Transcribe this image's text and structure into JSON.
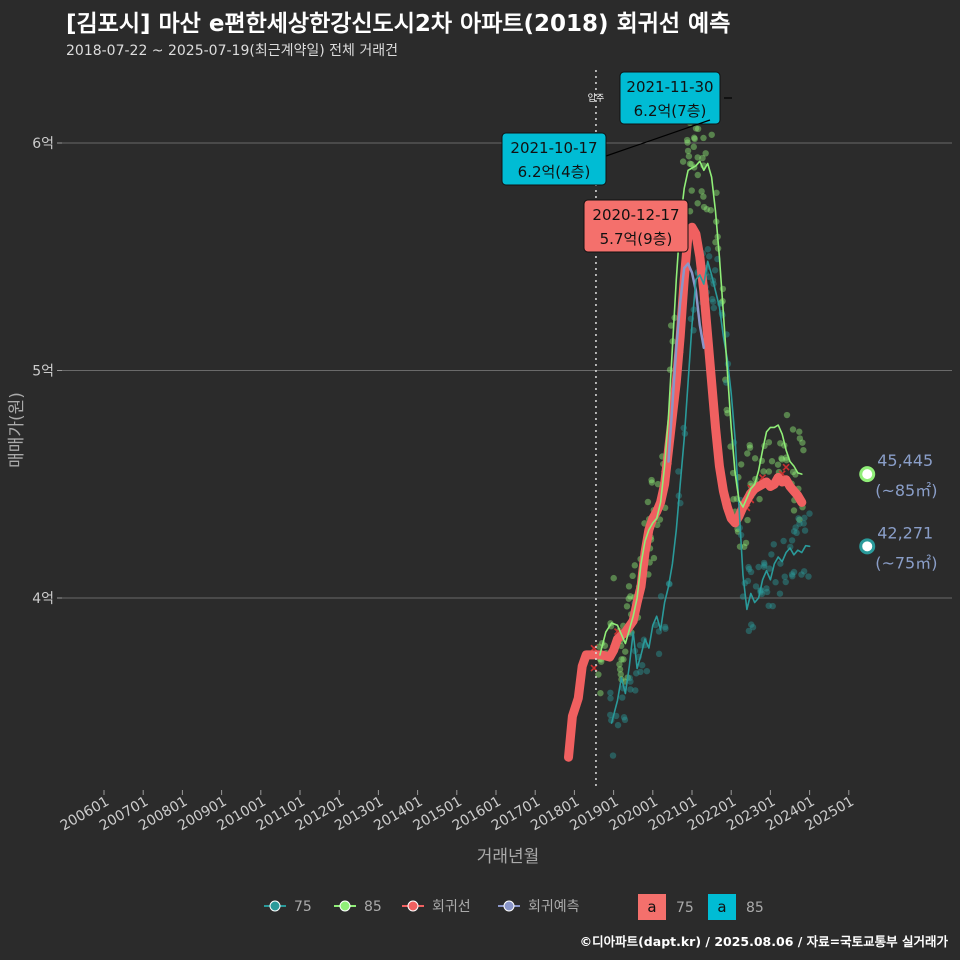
{
  "header": {
    "title": "[김포시] 마산 e편한세상한강신도시2차 아파트(2018) 회귀선 예측",
    "subtitle": "2018-07-22 ~ 2025-07-19(최근계약일) 전체 거래건"
  },
  "footer": {
    "credit": "©디아파트(dapt.kr) / 2025.08.06 / 자료=국토교통부 실거래가"
  },
  "chart_data": {
    "type": "line",
    "xlabel": "거래년월",
    "ylabel": "매매가(원)",
    "x_ticks": [
      "200601",
      "200701",
      "200801",
      "200901",
      "201001",
      "201101",
      "201201",
      "201301",
      "201401",
      "201501",
      "201601",
      "201701",
      "201801",
      "201901",
      "202001",
      "202101",
      "202201",
      "202301",
      "202401",
      "202501"
    ],
    "y_ticks": [
      {
        "value": 40000,
        "label": "4억"
      },
      {
        "value": 50000,
        "label": "5억"
      },
      {
        "value": 60000,
        "label": "6억"
      }
    ],
    "ylim": [
      31000,
      63000
    ],
    "xlim": [
      2005.5,
      2026.2
    ],
    "colors": {
      "s75": "#2a9a9a",
      "s85": "#90ee78",
      "reg": "#f06060",
      "pred": "#8a96c8",
      "teal_box": "#00bcd4",
      "red_box": "#f4706c"
    },
    "series": [
      {
        "name": "75",
        "points": [
          [
            2018.95,
            34500
          ],
          [
            2019.1,
            35500
          ],
          [
            2019.2,
            36500
          ],
          [
            2019.3,
            35800
          ],
          [
            2019.4,
            37000
          ],
          [
            2019.5,
            38500
          ],
          [
            2019.6,
            36900
          ],
          [
            2019.7,
            37500
          ],
          [
            2019.8,
            38200
          ],
          [
            2019.9,
            37800
          ],
          [
            2020.0,
            38800
          ],
          [
            2020.1,
            39200
          ],
          [
            2020.2,
            38600
          ],
          [
            2020.3,
            39800
          ],
          [
            2020.4,
            40500
          ],
          [
            2020.5,
            41500
          ],
          [
            2020.6,
            43000
          ],
          [
            2020.7,
            45000
          ],
          [
            2020.8,
            47000
          ],
          [
            2020.9,
            49500
          ],
          [
            2021.0,
            52000
          ],
          [
            2021.1,
            54000
          ],
          [
            2021.2,
            54200
          ],
          [
            2021.3,
            53800
          ],
          [
            2021.4,
            54800
          ],
          [
            2021.5,
            54200
          ],
          [
            2021.6,
            53500
          ],
          [
            2021.7,
            52800
          ],
          [
            2021.8,
            51500
          ],
          [
            2021.9,
            50500
          ],
          [
            2022.0,
            49000
          ],
          [
            2022.1,
            47000
          ],
          [
            2022.2,
            44000
          ],
          [
            2022.3,
            41000
          ],
          [
            2022.4,
            39500
          ],
          [
            2022.5,
            40200
          ],
          [
            2022.6,
            39800
          ],
          [
            2022.7,
            40000
          ],
          [
            2022.8,
            40800
          ],
          [
            2022.9,
            41200
          ],
          [
            2023.0,
            40800
          ],
          [
            2023.1,
            41500
          ],
          [
            2023.2,
            41800
          ],
          [
            2023.3,
            41600
          ],
          [
            2023.4,
            42000
          ],
          [
            2023.5,
            42200
          ],
          [
            2023.6,
            41900
          ],
          [
            2023.7,
            42100
          ],
          [
            2023.8,
            42000
          ],
          [
            2023.9,
            42300
          ],
          [
            2024.0,
            42271
          ]
        ]
      },
      {
        "name": "85",
        "points": [
          [
            2018.65,
            37500
          ],
          [
            2018.8,
            38500
          ],
          [
            2018.95,
            38900
          ],
          [
            2019.1,
            38800
          ],
          [
            2019.2,
            38400
          ],
          [
            2019.3,
            38000
          ],
          [
            2019.4,
            38600
          ],
          [
            2019.5,
            39200
          ],
          [
            2019.6,
            40000
          ],
          [
            2019.7,
            41500
          ],
          [
            2019.8,
            42500
          ],
          [
            2019.9,
            43000
          ],
          [
            2020.0,
            43300
          ],
          [
            2020.1,
            43500
          ],
          [
            2020.2,
            44200
          ],
          [
            2020.3,
            45800
          ],
          [
            2020.4,
            48000
          ],
          [
            2020.5,
            51000
          ],
          [
            2020.6,
            54000
          ],
          [
            2020.7,
            56500
          ],
          [
            2020.8,
            58000
          ],
          [
            2020.9,
            58800
          ],
          [
            2021.0,
            58900
          ],
          [
            2021.1,
            59000
          ],
          [
            2021.2,
            59200
          ],
          [
            2021.3,
            58800
          ],
          [
            2021.4,
            59100
          ],
          [
            2021.5,
            58500
          ],
          [
            2021.6,
            57000
          ],
          [
            2021.7,
            55000
          ],
          [
            2021.8,
            52500
          ],
          [
            2021.9,
            50000
          ],
          [
            2022.0,
            47500
          ],
          [
            2022.1,
            45500
          ],
          [
            2022.2,
            44300
          ],
          [
            2022.3,
            44000
          ],
          [
            2022.4,
            44400
          ],
          [
            2022.5,
            44800
          ],
          [
            2022.6,
            45000
          ],
          [
            2022.7,
            45600
          ],
          [
            2022.8,
            46500
          ],
          [
            2022.9,
            47300
          ],
          [
            2023.0,
            47500
          ],
          [
            2023.1,
            47500
          ],
          [
            2023.2,
            47600
          ],
          [
            2023.3,
            47200
          ],
          [
            2023.4,
            46500
          ],
          [
            2023.5,
            46000
          ],
          [
            2023.6,
            45800
          ],
          [
            2023.7,
            45500
          ],
          [
            2023.8,
            45445
          ]
        ]
      },
      {
        "name": "회귀선",
        "points": [
          [
            2017.85,
            33000
          ],
          [
            2017.95,
            34800
          ],
          [
            2018.1,
            35600
          ],
          [
            2018.2,
            37000
          ],
          [
            2018.3,
            37500
          ],
          [
            2018.5,
            37500
          ],
          [
            2018.7,
            37500
          ],
          [
            2018.9,
            37400
          ],
          [
            2019.0,
            37700
          ],
          [
            2019.1,
            38200
          ],
          [
            2019.3,
            38500
          ],
          [
            2019.5,
            39000
          ],
          [
            2019.6,
            39800
          ],
          [
            2019.7,
            40500
          ],
          [
            2019.8,
            42000
          ],
          [
            2019.9,
            43000
          ],
          [
            2020.0,
            43500
          ],
          [
            2020.1,
            43800
          ],
          [
            2020.2,
            44200
          ],
          [
            2020.3,
            45000
          ],
          [
            2020.4,
            46500
          ],
          [
            2020.5,
            48000
          ],
          [
            2020.6,
            49500
          ],
          [
            2020.7,
            51500
          ],
          [
            2020.8,
            54000
          ],
          [
            2020.9,
            56000
          ],
          [
            2021.0,
            56300
          ],
          [
            2021.1,
            56000
          ],
          [
            2021.2,
            55000
          ],
          [
            2021.3,
            53500
          ],
          [
            2021.4,
            51500
          ],
          [
            2021.5,
            49500
          ],
          [
            2021.6,
            47500
          ],
          [
            2021.7,
            45800
          ],
          [
            2021.8,
            44700
          ],
          [
            2021.9,
            44000
          ],
          [
            2022.0,
            43500
          ],
          [
            2022.1,
            43300
          ],
          [
            2022.2,
            43600
          ],
          [
            2022.3,
            44000
          ],
          [
            2022.4,
            44300
          ],
          [
            2022.5,
            44600
          ],
          [
            2022.6,
            44800
          ],
          [
            2022.7,
            44900
          ],
          [
            2022.8,
            45000
          ],
          [
            2022.9,
            45100
          ],
          [
            2023.0,
            44900
          ],
          [
            2023.1,
            45000
          ],
          [
            2023.2,
            45300
          ],
          [
            2023.3,
            45100
          ],
          [
            2023.4,
            45200
          ],
          [
            2023.5,
            44900
          ],
          [
            2023.6,
            44700
          ],
          [
            2023.7,
            44500
          ],
          [
            2023.8,
            44200
          ]
        ]
      },
      {
        "name": "회귀예측",
        "points": [
          [
            2020.4,
            46000
          ],
          [
            2020.5,
            48500
          ],
          [
            2020.6,
            51000
          ],
          [
            2020.7,
            53000
          ],
          [
            2020.8,
            54500
          ],
          [
            2020.9,
            54700
          ],
          [
            2021.0,
            54300
          ],
          [
            2021.1,
            53500
          ],
          [
            2021.2,
            52000
          ],
          [
            2021.3,
            51000
          ]
        ]
      }
    ],
    "annotations": [
      {
        "date": "2021-11-30",
        "text": "6.2억(7층)",
        "style": "teal"
      },
      {
        "date": "2021-10-17",
        "text": "6.2억(4층)",
        "style": "teal"
      },
      {
        "date": "2020-12-17",
        "text": "5.7억(9층)",
        "style": "red"
      }
    ],
    "vline": {
      "x": 2018.55,
      "label": "입주"
    },
    "end_labels": [
      {
        "value": "45,445",
        "unit": "(~85㎡)",
        "x": 2025.47,
        "y": 45445,
        "series": "85"
      },
      {
        "value": "42,271",
        "unit": "(~75㎡)",
        "x": 2025.47,
        "y": 42271,
        "series": "75"
      }
    ],
    "legend": {
      "items": [
        {
          "label": "75",
          "series": "75"
        },
        {
          "label": "85",
          "series": "85"
        },
        {
          "label": "회귀선",
          "series": "회귀선"
        },
        {
          "label": "회귀예측",
          "series": "회귀예측"
        }
      ],
      "boxes": [
        {
          "glyph": "a",
          "label": "75",
          "style": "red"
        },
        {
          "glyph": "a",
          "label": "85",
          "style": "teal"
        }
      ],
      "placement": "bottom"
    },
    "grid": true
  }
}
